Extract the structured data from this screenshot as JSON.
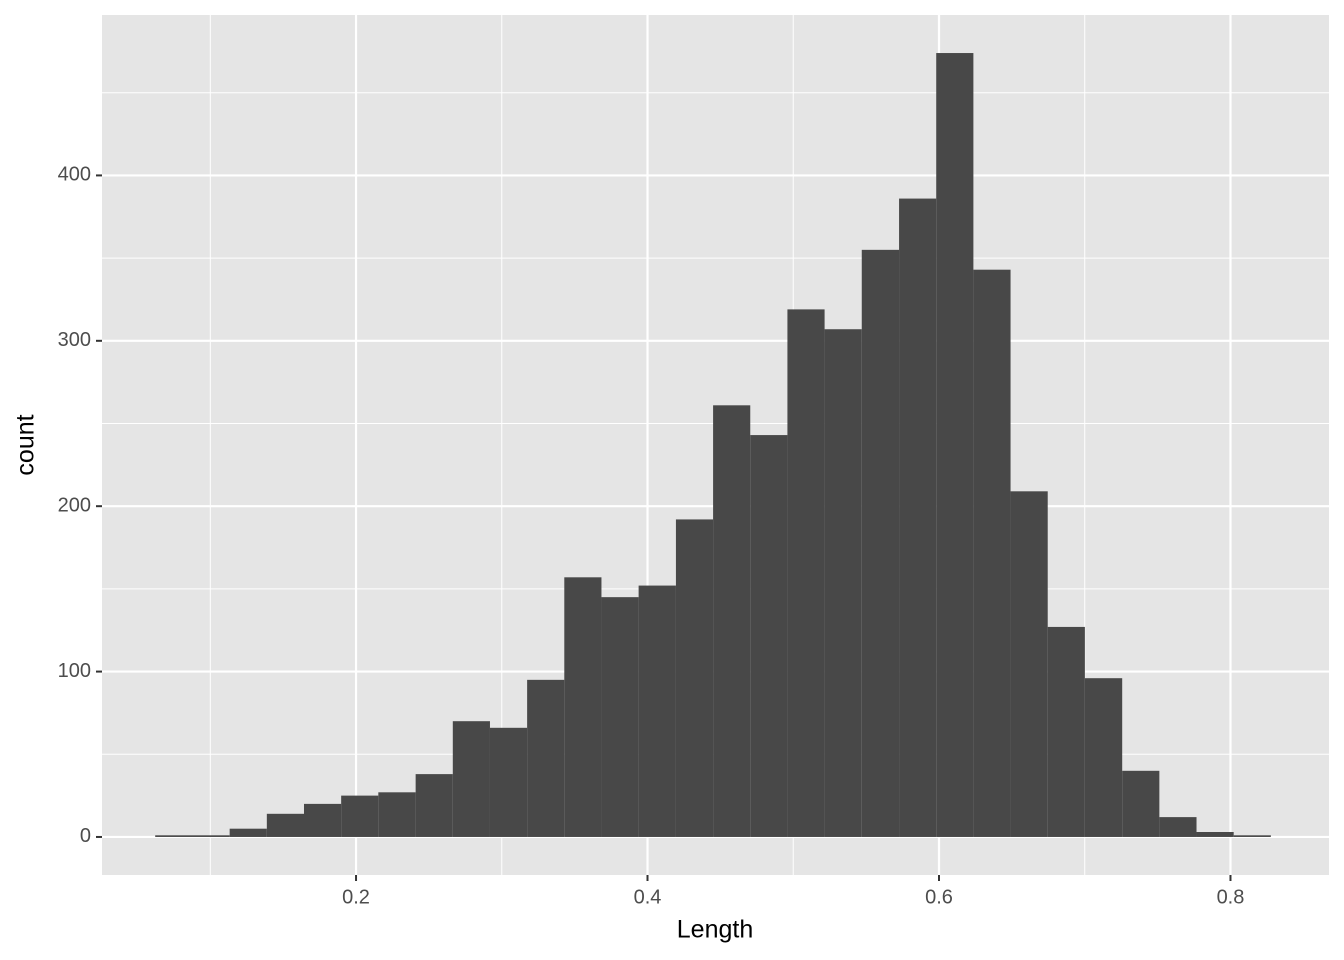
{
  "chart_data": {
    "type": "histogram",
    "x_label": "Length",
    "y_label": "count",
    "bins": [
      0.0622,
      0.0878,
      0.1133,
      0.1388,
      0.1643,
      0.1898,
      0.2153,
      0.2409,
      0.2664,
      0.2919,
      0.3174,
      0.3429,
      0.3684,
      0.3939,
      0.4195,
      0.445,
      0.4705,
      0.496,
      0.5215,
      0.547,
      0.5726,
      0.5981,
      0.6236,
      0.6491,
      0.6746,
      0.7001,
      0.7257,
      0.7512,
      0.7767,
      0.8022,
      0.8277
    ],
    "counts": [
      1,
      1,
      5,
      14,
      20,
      25,
      27,
      38,
      70,
      66,
      95,
      157,
      145,
      152,
      192,
      261,
      243,
      319,
      307,
      355,
      386,
      474,
      343,
      209,
      127,
      96,
      40,
      12,
      3,
      1
    ],
    "color": "#484848",
    "xlim": [
      0.0257,
      0.8676
    ],
    "ylim": [
      -23,
      497
    ],
    "xticks": [
      0.2,
      0.4,
      0.6,
      0.8
    ],
    "yticks": [
      0,
      100,
      200,
      300,
      400
    ],
    "x_minor_ticks": [
      0.1,
      0.3,
      0.5,
      0.7
    ],
    "y_minor_ticks": [
      50,
      150,
      250,
      350,
      450
    ],
    "grid": true,
    "panel_color": "#e5e5e5"
  }
}
